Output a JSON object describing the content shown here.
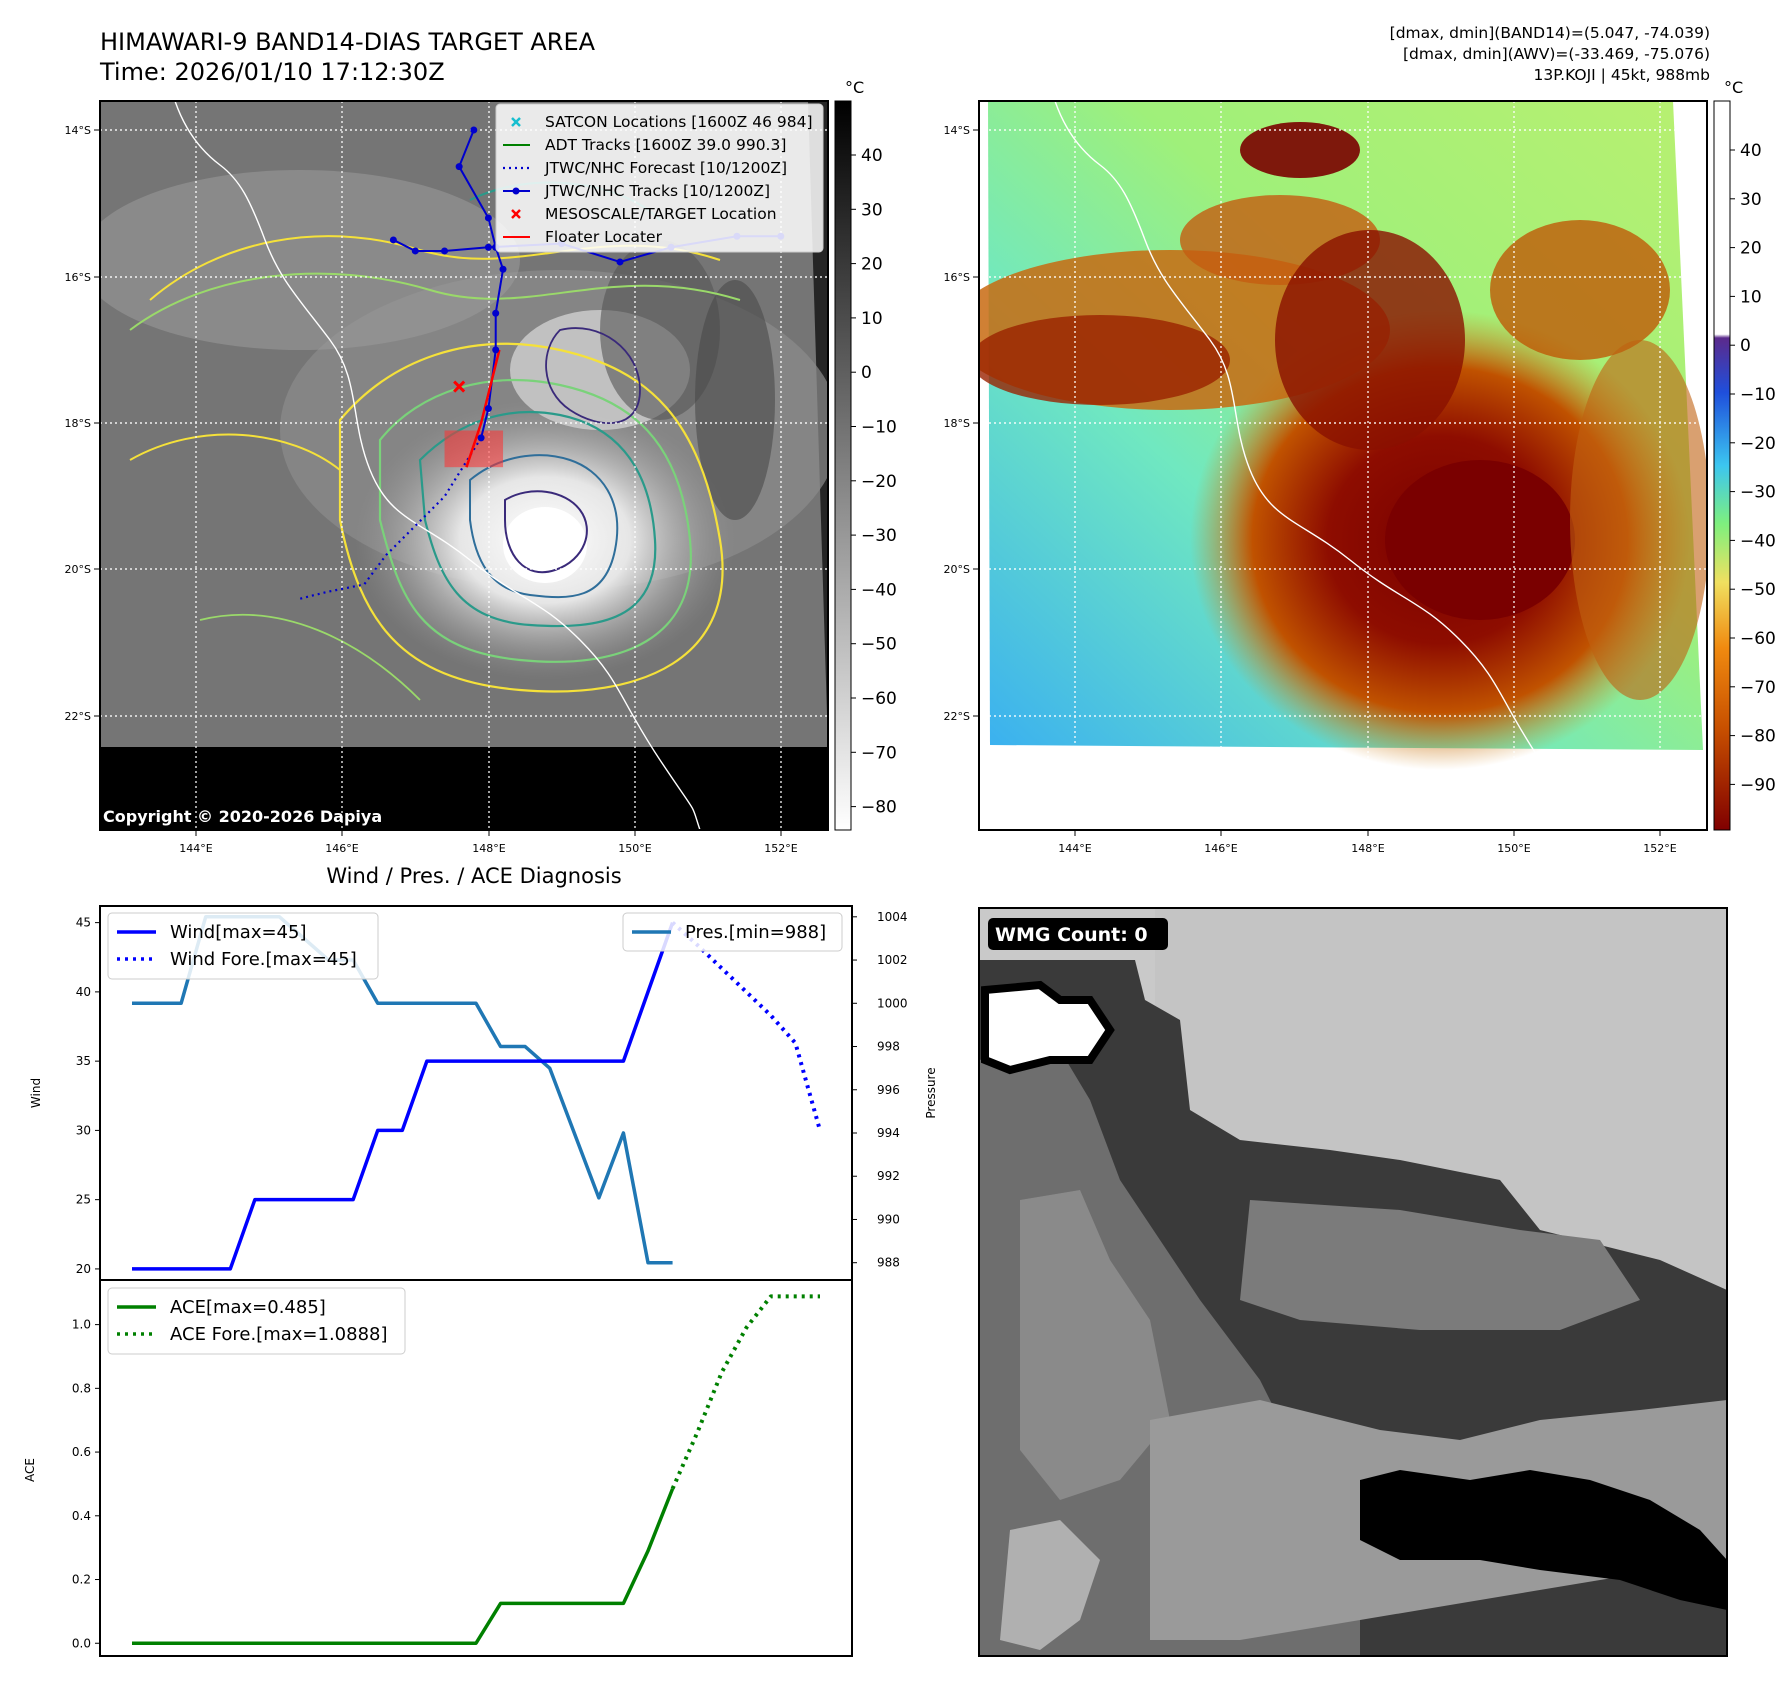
{
  "header": {
    "title": "HIMAWARI-9 BAND14-DIAS TARGET AREA",
    "time": "Time: 2026/01/10 17:12:30Z",
    "stats_band14": "[dmax, dmin](BAND14)=(5.047, -74.039)",
    "stats_awv": "[dmax, dmin](AWV)=(-33.469, -75.076)",
    "storm_info": "13P.KOJI | 45kt, 988mb"
  },
  "colors": {
    "wind": "#0000ff",
    "pressure": "#1f77b4",
    "ace": "#008000",
    "satcon": "#17becf",
    "adt": "#008000",
    "jtwc": "#0000cd",
    "target": "#ff0000",
    "floater": "#ff0000"
  },
  "map": {
    "lat_ticks": [
      "14°S",
      "16°S",
      "18°S",
      "20°S",
      "22°S"
    ],
    "lon_ticks": [
      "144°E",
      "146°E",
      "148°E",
      "150°E",
      "152°E"
    ],
    "copyright": "Copyright © 2020-2026 Dapiya",
    "legend": [
      {
        "label": "SATCON Locations [1600Z 46 984]",
        "icon": "cyan-x-marker"
      },
      {
        "label": "ADT Tracks [1600Z 39.0 990.3]",
        "icon": "green-line"
      },
      {
        "label": "JTWC/NHC Forecast [10/1200Z]",
        "icon": "blue-dotted-line"
      },
      {
        "label": "JTWC/NHC Tracks [10/1200Z]",
        "icon": "blue-line-dots"
      },
      {
        "label": "MESOSCALE/TARGET Location",
        "icon": "red-x-marker"
      },
      {
        "label": "Floater Locater",
        "icon": "red-line"
      }
    ],
    "track_points": [
      [
        146.7,
        -15.5
      ],
      [
        147.0,
        -15.65
      ],
      [
        147.4,
        -15.65
      ],
      [
        148.0,
        -15.6
      ],
      [
        149.0,
        -15.55
      ],
      [
        149.8,
        -15.8
      ],
      [
        150.5,
        -15.6
      ],
      [
        151.4,
        -15.45
      ],
      [
        152.0,
        -15.45
      ]
    ],
    "north_track": [
      [
        147.8,
        -14.0
      ],
      [
        147.6,
        -14.5
      ],
      [
        148.0,
        -15.2
      ],
      [
        148.1,
        -15.6
      ]
    ],
    "south_track": [
      [
        148.1,
        -15.6
      ],
      [
        148.2,
        -15.9
      ],
      [
        148.1,
        -16.5
      ],
      [
        148.1,
        -17.0
      ],
      [
        148.0,
        -17.8
      ],
      [
        147.9,
        -18.2
      ]
    ],
    "forecast_track": [
      [
        147.9,
        -18.2
      ],
      [
        147.4,
        -19.0
      ],
      [
        146.6,
        -19.8
      ],
      [
        146.3,
        -20.2
      ],
      [
        145.8,
        -20.3
      ],
      [
        145.4,
        -20.4
      ]
    ],
    "floater_track": [
      [
        148.15,
        -17.0
      ],
      [
        147.9,
        -18.0
      ],
      [
        147.7,
        -18.6
      ]
    ],
    "target_xy": [
      147.6,
      -17.5
    ],
    "target_box": [
      [
        147.4,
        -18.1
      ],
      [
        148.2,
        -18.6
      ]
    ]
  },
  "colorbar_ir": {
    "unit": "°C",
    "ticks": [
      "40",
      "30",
      "20",
      "10",
      "0",
      "−10",
      "−20",
      "−30",
      "−40",
      "−50",
      "−60",
      "−70",
      "−80"
    ]
  },
  "colorbar_awv": {
    "unit": "°C",
    "ticks": [
      "40",
      "30",
      "20",
      "10",
      "0",
      "−10",
      "−20",
      "−30",
      "−40",
      "−50",
      "−60",
      "−70",
      "−80",
      "−90"
    ]
  },
  "diag": {
    "title": "Wind / Pres. / ACE Diagnosis",
    "ylabel_wind": "Wind",
    "ylabel_pressure": "Pressure",
    "ylabel_ace": "ACE",
    "wind_ticks": [
      "45",
      "40",
      "35",
      "30",
      "25",
      "20"
    ],
    "pressure_ticks": [
      "1004",
      "1002",
      "1000",
      "998",
      "996",
      "994",
      "992",
      "990",
      "988"
    ],
    "ace_ticks": [
      "1.0",
      "0.8",
      "0.6",
      "0.4",
      "0.2",
      "0.0"
    ],
    "legend_wind": "Wind[max=45]",
    "legend_wind_fore": "Wind Fore.[max=45]",
    "legend_pres": "Pres.[min=988]",
    "legend_ace": "ACE[max=0.485]",
    "legend_ace_fore": "ACE Fore.[max=1.0888]"
  },
  "wmg": {
    "label": "WMG Count: 0"
  },
  "chart_data": [
    {
      "type": "line",
      "title": "Wind / Pres. / ACE Diagnosis",
      "ylabel": "Wind",
      "ylim": [
        19.2,
        46.2
      ],
      "x": [
        0,
        1,
        2,
        3,
        4,
        5,
        6,
        7,
        8,
        9,
        10,
        11,
        12,
        13,
        14,
        15,
        16,
        17,
        18,
        19,
        20,
        21,
        22,
        23,
        24,
        25,
        26,
        27,
        28
      ],
      "series": [
        {
          "name": "Wind[max=45]",
          "x": [
            0,
            1,
            2,
            3,
            4,
            5,
            6,
            7,
            8,
            9,
            10,
            11,
            12,
            13,
            14,
            15,
            16,
            17,
            18,
            19,
            20,
            21,
            22
          ],
          "values": [
            20,
            20,
            20,
            20,
            20,
            25,
            25,
            25,
            25,
            25,
            30,
            30,
            35,
            35,
            35,
            35,
            35,
            35,
            35,
            35,
            35,
            40,
            45
          ]
        },
        {
          "name": "Wind Fore.[max=45]",
          "x": [
            22,
            23,
            24,
            25,
            26,
            27,
            28
          ],
          "values": [
            45,
            43.4,
            41.7,
            40,
            38.3,
            36.3,
            30
          ]
        }
      ]
    },
    {
      "type": "line",
      "ylabel": "Pressure",
      "ylim": [
        987.2,
        1004.5
      ],
      "series": [
        {
          "name": "Pres.[min=988]",
          "x": [
            0,
            1,
            2,
            3,
            4,
            5,
            6,
            7,
            8,
            9,
            10,
            11,
            12,
            13,
            14,
            15,
            16,
            17,
            18,
            19,
            20,
            21,
            22
          ],
          "values": [
            1000,
            1000,
            1000,
            1004,
            1004,
            1004,
            1004,
            1003,
            1002,
            1002,
            1000,
            1000,
            1000,
            1000,
            1000,
            998,
            998,
            997,
            994,
            991,
            994,
            988,
            988
          ]
        }
      ]
    },
    {
      "type": "line",
      "ylabel": "ACE",
      "ylim": [
        -0.04,
        1.14
      ],
      "series": [
        {
          "name": "ACE[max=0.485]",
          "x": [
            0,
            1,
            2,
            3,
            4,
            5,
            6,
            7,
            8,
            9,
            10,
            11,
            12,
            13,
            14,
            15,
            16,
            17,
            18,
            19,
            20,
            21,
            22
          ],
          "values": [
            0,
            0,
            0,
            0,
            0,
            0,
            0,
            0,
            0,
            0,
            0,
            0,
            0,
            0,
            0,
            0.125,
            0.125,
            0.125,
            0.125,
            0.125,
            0.125,
            0.29,
            0.485
          ]
        },
        {
          "name": "ACE Fore.[max=1.0888]",
          "x": [
            22,
            23,
            24,
            25,
            26,
            27,
            28
          ],
          "values": [
            0.485,
            0.66,
            0.85,
            0.99,
            1.0888,
            1.0888,
            1.0888
          ]
        }
      ]
    }
  ]
}
